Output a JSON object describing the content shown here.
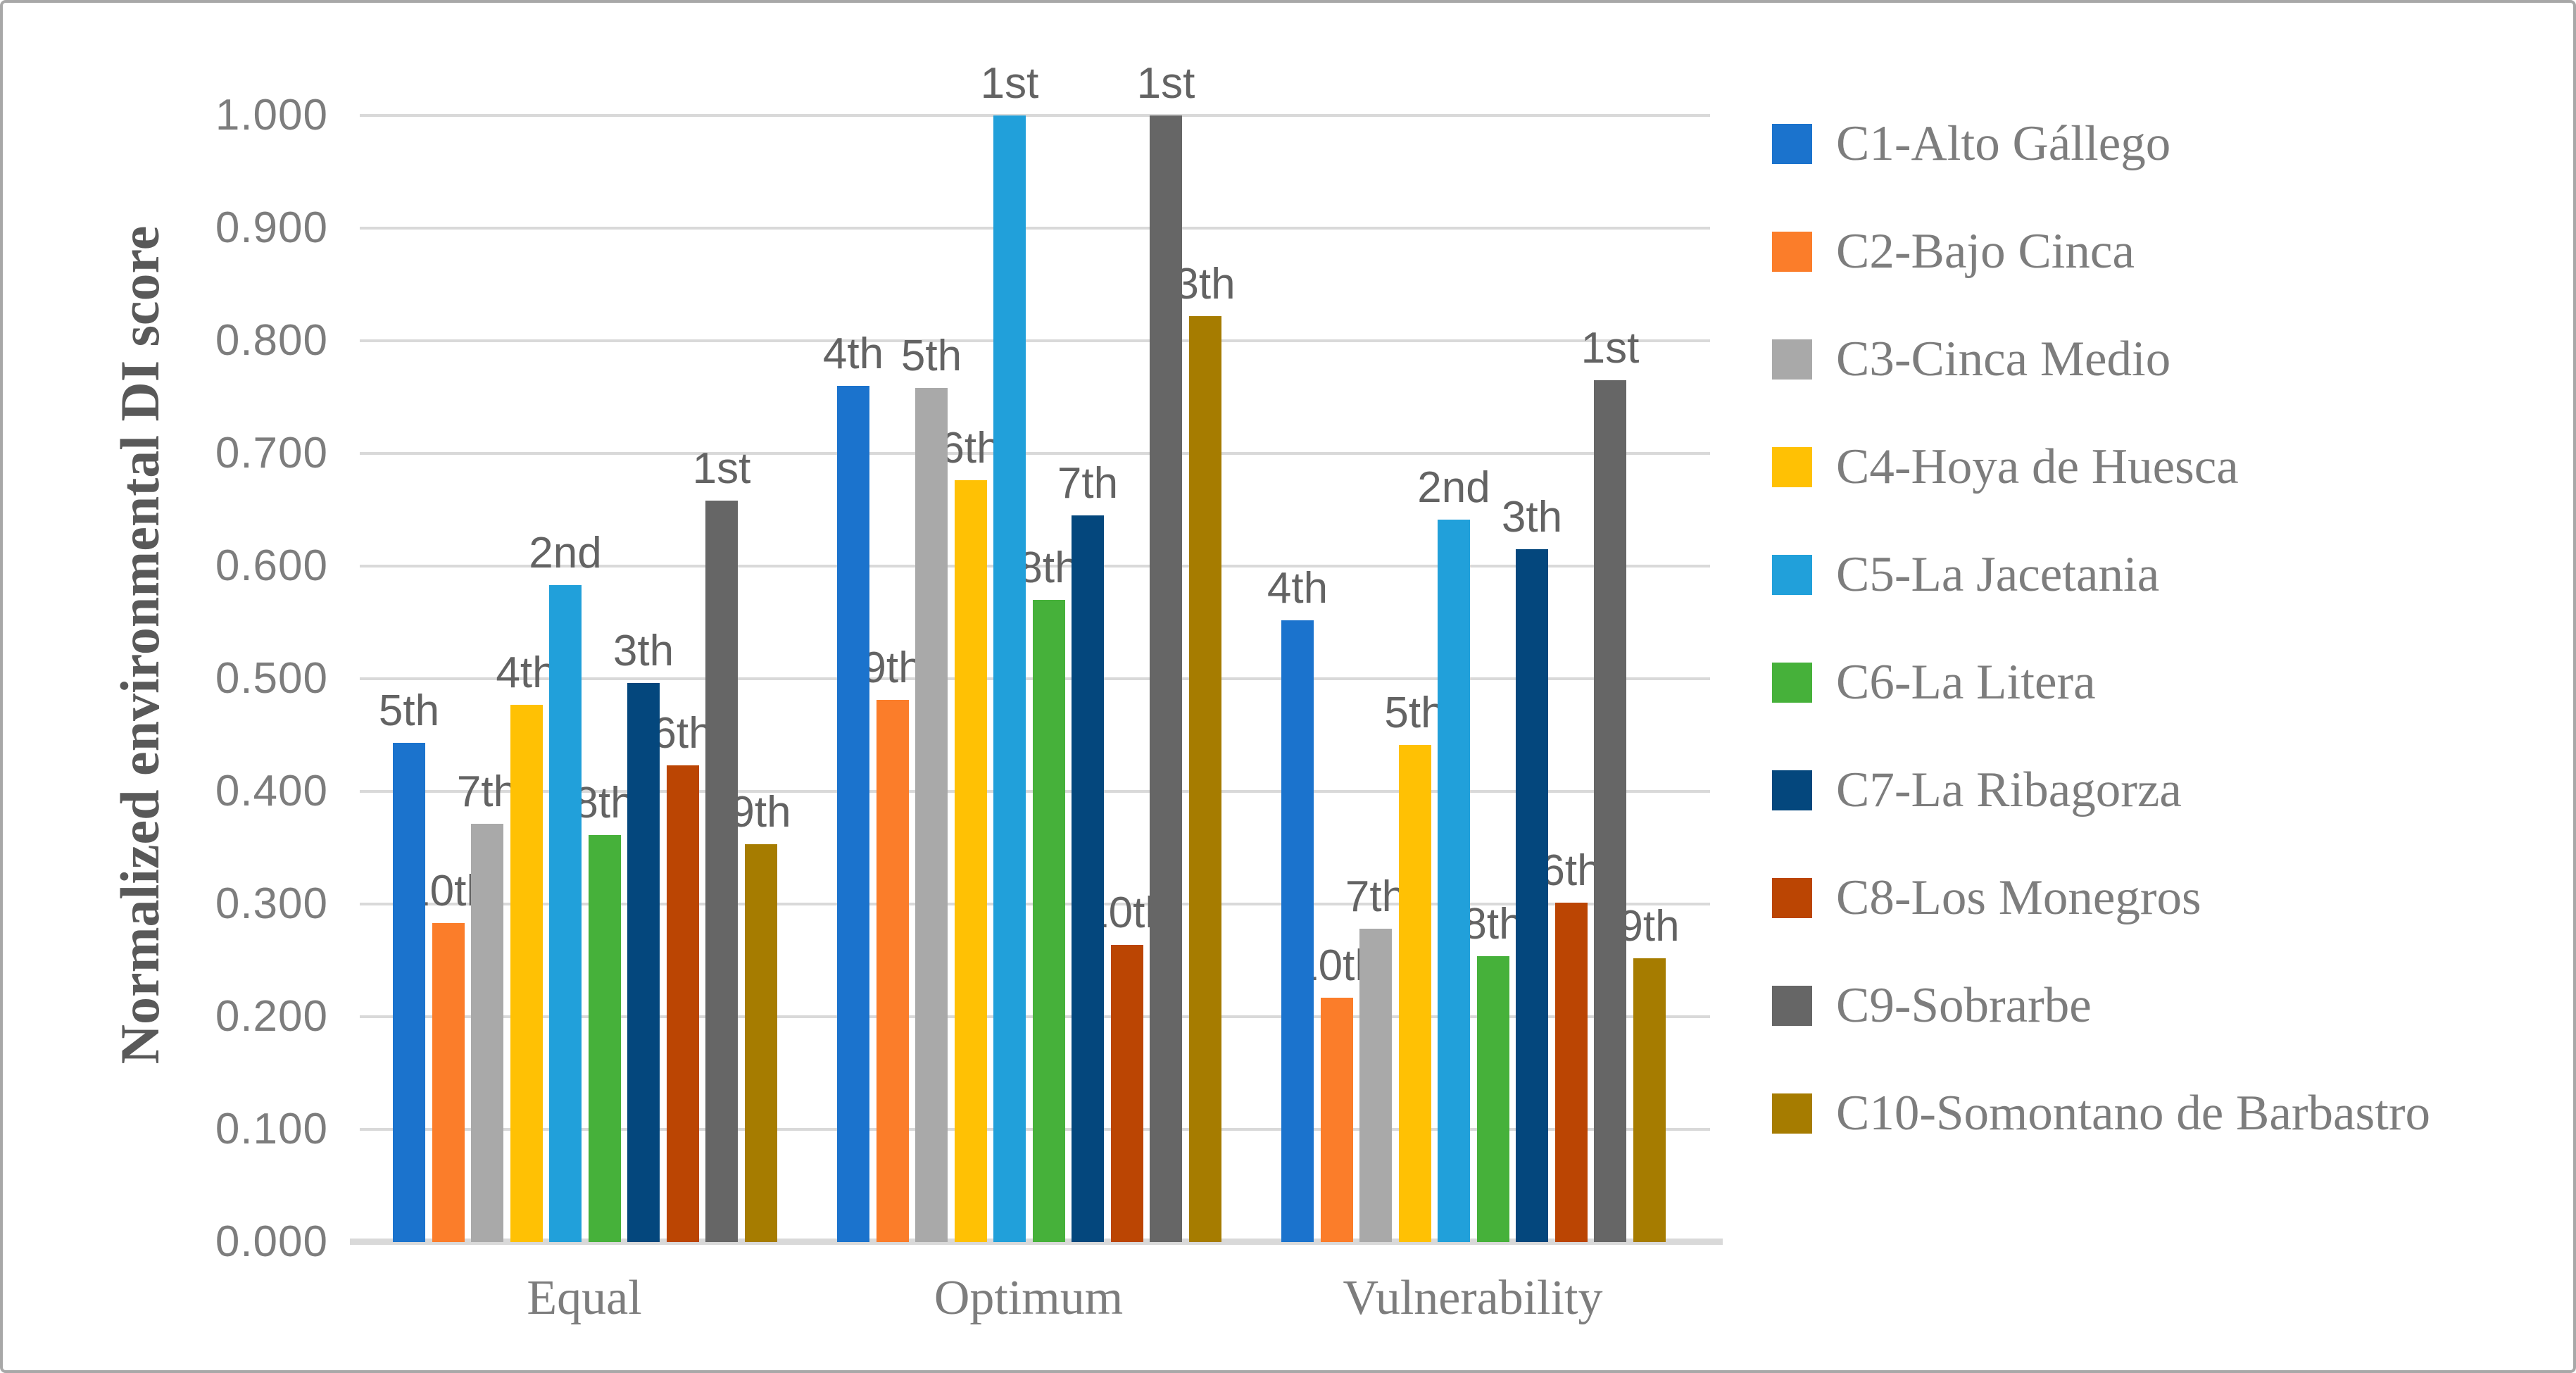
{
  "figure": {
    "background_color": "#ffffff",
    "border_color": "#a8a8a8",
    "gridline_color": "#d9d9d9",
    "axis_line_color": "#d9d9d9",
    "tick_text_color": "#7d7d7d",
    "rank_label_color": "#636363",
    "category_text_color": "#7d7d7d",
    "axis_title_color": "#595959",
    "legend_text_color": "#7d7d7d"
  },
  "chart_data": {
    "type": "bar",
    "title": "",
    "xlabel": "",
    "ylabel": "Normalized environmental DI score",
    "ylim": [
      0.0,
      1.0
    ],
    "ytick_step": 0.1,
    "yticks": [
      "0.000",
      "0.100",
      "0.200",
      "0.300",
      "0.400",
      "0.500",
      "0.600",
      "0.700",
      "0.800",
      "0.900",
      "1.000"
    ],
    "grid": "horizontal",
    "legend_position": "right",
    "categories": [
      "Equal",
      "Optimum",
      "Vulnerability"
    ],
    "series": [
      {
        "name": "C1-Alto Gállego",
        "color": "#1b73cd",
        "values": [
          0.443,
          0.76,
          0.552
        ],
        "rank_labels": [
          "5th",
          "4th",
          "4th"
        ]
      },
      {
        "name": "C2-Bajo Cinca",
        "color": "#fb7d2a",
        "values": [
          0.283,
          0.481,
          0.217
        ],
        "rank_labels": [
          "10th",
          "9th",
          "10th"
        ]
      },
      {
        "name": "C3-Cinca Medio",
        "color": "#a9a9a9",
        "values": [
          0.371,
          0.758,
          0.278
        ],
        "rank_labels": [
          "7th",
          "5th",
          "7th"
        ]
      },
      {
        "name": "C4-Hoya de Huesca",
        "color": "#ffc104",
        "values": [
          0.477,
          0.676,
          0.441
        ],
        "rank_labels": [
          "4th",
          "6th",
          "5th"
        ]
      },
      {
        "name": "C5-La Jacetania",
        "color": "#21a0da",
        "values": [
          0.583,
          1.0,
          0.641
        ],
        "rank_labels": [
          "2nd",
          "1st",
          "2nd"
        ]
      },
      {
        "name": "C6-La Litera",
        "color": "#46b13a",
        "values": [
          0.361,
          0.57,
          0.254
        ],
        "rank_labels": [
          "8th",
          "8th",
          "8th"
        ]
      },
      {
        "name": "C7-La Ribagorza",
        "color": "#04477d",
        "values": [
          0.496,
          0.645,
          0.615
        ],
        "rank_labels": [
          "3th",
          "7th",
          "3th"
        ]
      },
      {
        "name": "C8-Los Monegros",
        "color": "#bb4503",
        "values": [
          0.423,
          0.264,
          0.301
        ],
        "rank_labels": [
          "6th",
          "10th",
          "6th"
        ]
      },
      {
        "name": "C9-Sobrarbe",
        "color": "#666666",
        "values": [
          0.658,
          1.0,
          0.765
        ],
        "rank_labels": [
          "1st",
          "1st",
          "1st"
        ]
      },
      {
        "name": "C10-Somontano de Barbastro",
        "color": "#a67c00",
        "values": [
          0.353,
          0.822,
          0.252
        ],
        "rank_labels": [
          "9th",
          "3th",
          "9th"
        ]
      }
    ]
  }
}
